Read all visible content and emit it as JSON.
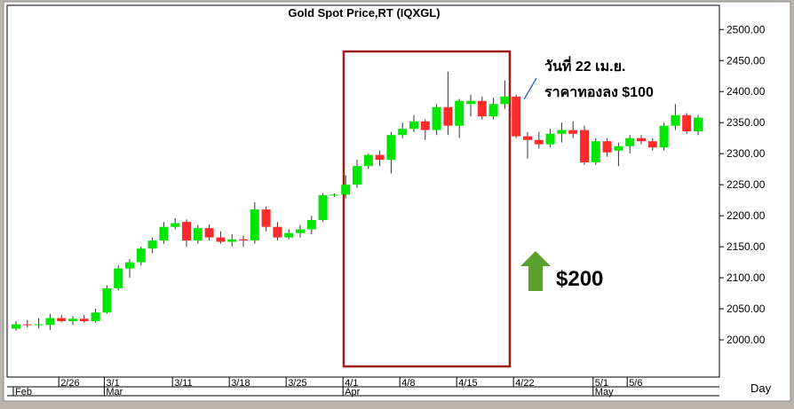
{
  "chart_data": {
    "type": "candlestick",
    "title": "Gold Spot Price,RT (IQXGL)",
    "x_label": "Day",
    "categories": [
      null,
      null,
      null,
      null,
      "2/26",
      null,
      null,
      null,
      "3/1",
      null,
      null,
      null,
      null,
      null,
      "3/11",
      null,
      null,
      null,
      null,
      "3/18",
      null,
      null,
      null,
      null,
      "3/25",
      null,
      null,
      null,
      null,
      "4/1",
      null,
      null,
      null,
      null,
      "4/8",
      null,
      null,
      null,
      null,
      "4/15",
      null,
      null,
      null,
      null,
      "4/22",
      null,
      null,
      null,
      null,
      null,
      null,
      "5/1",
      null,
      null,
      "5/6",
      null,
      null,
      null,
      null,
      null,
      null
    ],
    "months": [
      {
        "label": "Feb",
        "index": 0
      },
      {
        "label": "Mar",
        "index": 8
      },
      {
        "label": "Apr",
        "index": 29
      },
      {
        "label": "May",
        "index": 51
      }
    ],
    "open": [
      2018,
      2025,
      2024,
      2024,
      2035,
      2030,
      2034,
      2030,
      2044,
      2083,
      2115,
      2125,
      2147,
      2160,
      2182,
      2190,
      2160,
      2180,
      2165,
      2158,
      2162,
      2160,
      2210,
      2182,
      2165,
      2172,
      2178,
      2193,
      2233,
      2234,
      2250,
      2280,
      2298,
      2290,
      2330,
      2340,
      2352,
      2338,
      2375,
      2345,
      2380,
      2385,
      2360,
      2380,
      2392,
      2328,
      2322,
      2315,
      2332,
      2338,
      2338,
      2286,
      2320,
      2305,
      2312,
      2325,
      2320,
      2310,
      2345,
      2362,
      2336
    ],
    "high": [
      2030,
      2032,
      2035,
      2042,
      2040,
      2038,
      2040,
      2050,
      2088,
      2120,
      2130,
      2150,
      2165,
      2190,
      2196,
      2194,
      2185,
      2186,
      2175,
      2170,
      2168,
      2222,
      2215,
      2190,
      2178,
      2185,
      2200,
      2236,
      2236,
      2265,
      2290,
      2300,
      2305,
      2335,
      2350,
      2362,
      2355,
      2380,
      2432,
      2388,
      2395,
      2392,
      2390,
      2418,
      2395,
      2335,
      2335,
      2340,
      2350,
      2352,
      2345,
      2325,
      2325,
      2318,
      2330,
      2330,
      2325,
      2350,
      2380,
      2365,
      2362
    ],
    "low": [
      2015,
      2020,
      2018,
      2016,
      2028,
      2024,
      2028,
      2028,
      2042,
      2080,
      2100,
      2120,
      2140,
      2155,
      2178,
      2150,
      2155,
      2160,
      2155,
      2150,
      2150,
      2155,
      2175,
      2160,
      2162,
      2165,
      2170,
      2190,
      2230,
      2228,
      2245,
      2275,
      2280,
      2268,
      2325,
      2335,
      2322,
      2330,
      2330,
      2325,
      2360,
      2355,
      2355,
      2372,
      2325,
      2292,
      2308,
      2310,
      2318,
      2325,
      2282,
      2282,
      2295,
      2280,
      2300,
      2315,
      2305,
      2305,
      2338,
      2332,
      2330
    ],
    "close": [
      2025,
      2024,
      2025,
      2035,
      2030,
      2034,
      2030,
      2044,
      2083,
      2115,
      2125,
      2147,
      2160,
      2182,
      2188,
      2160,
      2180,
      2165,
      2158,
      2162,
      2160,
      2210,
      2182,
      2165,
      2172,
      2178,
      2193,
      2233,
      2234,
      2250,
      2280,
      2298,
      2290,
      2330,
      2340,
      2352,
      2338,
      2375,
      2345,
      2385,
      2385,
      2360,
      2380,
      2392,
      2328,
      2322,
      2315,
      2332,
      2338,
      2332,
      2286,
      2320,
      2302,
      2312,
      2325,
      2320,
      2310,
      2345,
      2362,
      2336,
      2358
    ],
    "up_color": "#00e600",
    "down_color": "#ff2b2b",
    "ylim": [
      1940,
      2539
    ],
    "yticks": [
      {
        "value": 2000,
        "label": "2000.00"
      },
      {
        "value": 2050,
        "label": "2050.00"
      },
      {
        "value": 2100,
        "label": "2100.00"
      },
      {
        "value": 2150,
        "label": "2150.00"
      },
      {
        "value": 2200,
        "label": "2200.00"
      },
      {
        "value": 2250,
        "label": "2250.00"
      },
      {
        "value": 2300,
        "label": "2300.00"
      },
      {
        "value": 2350,
        "label": "2350.00"
      },
      {
        "value": 2400,
        "label": "2400.00"
      },
      {
        "value": 2450,
        "label": "2450.00"
      },
      {
        "value": 2500,
        "label": "2500.00"
      }
    ],
    "annotations": [
      "วันที่ 22 เม.ย.",
      "ราคาทองลง $100",
      "$200"
    ]
  }
}
